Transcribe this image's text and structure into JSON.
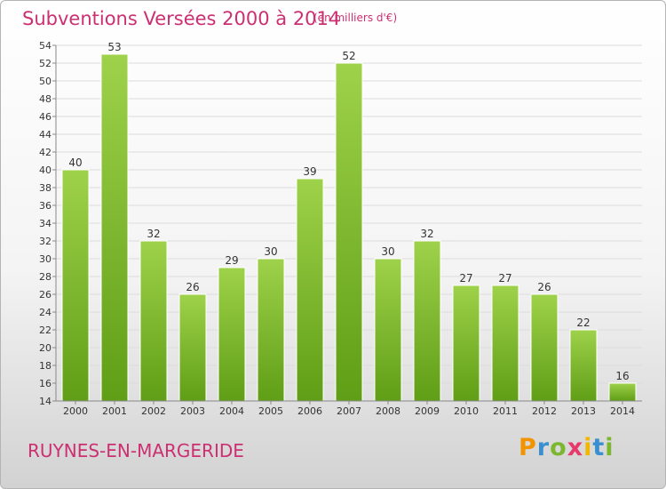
{
  "header": {
    "title": "Subventions Versées 2000 à 2014",
    "subtitle": "(en milliers d'€)"
  },
  "footer": {
    "commune": "RUYNES-EN-MARGERIDE",
    "logo_letters": [
      "P",
      "r",
      "o",
      "x",
      "i",
      "t",
      "i"
    ],
    "logo_colors": [
      "#f29400",
      "#3a8fd0",
      "#7cb82f",
      "#e53a6b",
      "#f2b800",
      "#3a8fd0",
      "#7cb82f"
    ]
  },
  "chart_data": {
    "type": "bar",
    "categories": [
      "2000",
      "2001",
      "2002",
      "2003",
      "2004",
      "2005",
      "2006",
      "2007",
      "2008",
      "2009",
      "2010",
      "2011",
      "2012",
      "2013",
      "2014"
    ],
    "values": [
      40,
      53,
      32,
      26,
      29,
      30,
      39,
      52,
      30,
      32,
      27,
      27,
      26,
      22,
      16
    ],
    "title": "Subventions Versées 2000 à 2014",
    "ylim": [
      14,
      54
    ],
    "yticks": [
      14,
      16,
      18,
      20,
      22,
      24,
      26,
      28,
      30,
      32,
      34,
      36,
      38,
      40,
      42,
      44,
      46,
      48,
      50,
      52,
      54
    ],
    "grid": true,
    "bar_color_top": "#9ed24a",
    "bar_color_bottom": "#5f9e16"
  }
}
